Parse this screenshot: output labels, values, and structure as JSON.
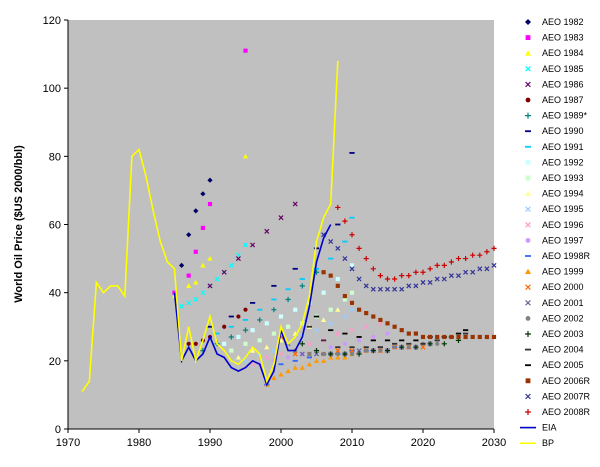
{
  "chart_data": {
    "type": "scatter",
    "ylabel": "World Oil Price ($US 2000/bbl)",
    "xlim": [
      1970,
      2030
    ],
    "ylim": [
      0,
      120
    ],
    "x_ticks": [
      "1970",
      "1980",
      "1990",
      "2000",
      "2010",
      "2020",
      "2030"
    ],
    "y_ticks": [
      "0",
      "20",
      "40",
      "60",
      "80",
      "100",
      "120"
    ],
    "plot_background": "#c0c0c0",
    "grid": false,
    "legend_position": "right",
    "series": [
      {
        "name": "AEO 1982",
        "marker": "diamond",
        "color": "#000066",
        "x": [
          1986,
          1987,
          1988,
          1989,
          1990
        ],
        "y": [
          48,
          57,
          64,
          69,
          73
        ]
      },
      {
        "name": "AEO 1983",
        "marker": "square",
        "color": "#ff00ff",
        "x": [
          1985,
          1987,
          1988,
          1989,
          1990,
          1995
        ],
        "y": [
          40,
          45,
          52,
          59,
          66,
          111
        ]
      },
      {
        "name": "AEO 1984",
        "marker": "triangle",
        "color": "#ffff00",
        "x": [
          1985,
          1987,
          1988,
          1989,
          1990,
          1995
        ],
        "y": [
          39,
          42,
          43,
          48,
          50,
          80
        ]
      },
      {
        "name": "AEO 1985",
        "marker": "x",
        "color": "#00ffff",
        "x": [
          1986,
          1987,
          1988,
          1989,
          1990,
          1991,
          1992,
          1993,
          1994,
          1995
        ],
        "y": [
          36,
          37,
          38,
          40,
          42,
          44,
          46,
          48,
          51,
          54
        ]
      },
      {
        "name": "AEO 1986",
        "marker": "x",
        "color": "#660066",
        "x": [
          1990,
          1992,
          1994,
          1996,
          1998,
          2000,
          2002
        ],
        "y": [
          42,
          46,
          50,
          54,
          58,
          62,
          66
        ]
      },
      {
        "name": "AEO 1987",
        "marker": "circle",
        "color": "#800000",
        "x": [
          1987,
          1988,
          1989,
          1990,
          1992,
          1994,
          1995
        ],
        "y": [
          25,
          25,
          26,
          27,
          30,
          33,
          35
        ]
      },
      {
        "name": "AEO 1989*",
        "marker": "plus",
        "color": "#008080",
        "x": [
          1989,
          1991,
          1993,
          1995,
          1997,
          1999,
          2001,
          2003,
          2005
        ],
        "y": [
          23,
          25,
          27,
          29,
          32,
          35,
          38,
          42,
          46
        ]
      },
      {
        "name": "AEO 1990",
        "marker": "dash",
        "color": "#000080",
        "x": [
          1990,
          1993,
          1996,
          1999,
          2002,
          2005,
          2008,
          2010
        ],
        "y": [
          30,
          33,
          37,
          42,
          47,
          53,
          60,
          81
        ]
      },
      {
        "name": "AEO 1991",
        "marker": "dash",
        "color": "#00ccff",
        "x": [
          1991,
          1993,
          1995,
          1997,
          1999,
          2001,
          2003,
          2005,
          2007,
          2009,
          2010
        ],
        "y": [
          28,
          30,
          32,
          35,
          38,
          41,
          44,
          47,
          50,
          55,
          62
        ]
      },
      {
        "name": "AEO 1992",
        "marker": "square",
        "color": "#ccffff",
        "x": [
          1992,
          1994,
          1996,
          1998,
          2000,
          2002,
          2004,
          2006,
          2008,
          2010
        ],
        "y": [
          25,
          27,
          29,
          31,
          33,
          35,
          37,
          40,
          44,
          48
        ]
      },
      {
        "name": "AEO 1993",
        "marker": "square",
        "color": "#ccffcc",
        "x": [
          1993,
          1995,
          1997,
          1999,
          2001,
          2003,
          2005,
          2007,
          2009,
          2010
        ],
        "y": [
          23,
          25,
          26,
          28,
          30,
          31,
          33,
          35,
          38,
          40
        ]
      },
      {
        "name": "AEO 1994",
        "marker": "triangle",
        "color": "#ffff99",
        "x": [
          1994,
          1996,
          1998,
          2000,
          2002,
          2004,
          2006,
          2008,
          2010
        ],
        "y": [
          21,
          23,
          24,
          26,
          28,
          30,
          32,
          35,
          37
        ]
      },
      {
        "name": "AEO 1995",
        "marker": "x",
        "color": "#99ccff",
        "x": [
          1995,
          1997,
          1999,
          2001,
          2003,
          2005,
          2007,
          2009,
          2010
        ],
        "y": [
          20,
          22,
          23,
          25,
          27,
          29,
          31,
          33,
          35
        ]
      },
      {
        "name": "AEO 1996",
        "marker": "x",
        "color": "#ff99cc",
        "x": [
          1996,
          1998,
          2000,
          2002,
          2004,
          2006,
          2008,
          2010,
          2012,
          2014
        ],
        "y": [
          19,
          21,
          22,
          23,
          25,
          26,
          28,
          29,
          30,
          31
        ]
      },
      {
        "name": "AEO 1997",
        "marker": "circle",
        "color": "#cc99ff",
        "x": [
          1997,
          1999,
          2001,
          2003,
          2005,
          2007,
          2009,
          2011,
          2013,
          2015
        ],
        "y": [
          19,
          20,
          21,
          22,
          23,
          24,
          25,
          26,
          27,
          28
        ]
      },
      {
        "name": "AEO 1998R",
        "marker": "dash",
        "color": "#3366ff",
        "x": [
          1998,
          2000,
          2002,
          2004,
          2006,
          2008,
          2010,
          2012,
          2014,
          2016
        ],
        "y": [
          13,
          19,
          20,
          21,
          22,
          22,
          23,
          23,
          24,
          24
        ]
      },
      {
        "name": "AEO 1999",
        "marker": "triangle",
        "color": "#ff9900",
        "x": [
          1998,
          1999,
          2000,
          2001,
          2002,
          2003,
          2004,
          2005,
          2006,
          2007,
          2008,
          2009,
          2010
        ],
        "y": [
          13,
          15,
          16,
          17,
          18,
          18,
          19,
          20,
          20,
          21,
          21,
          21,
          22
        ]
      },
      {
        "name": "AEO 2000",
        "marker": "x",
        "color": "#ff6600",
        "x": [
          2000,
          2002,
          2004,
          2006,
          2008,
          2010,
          2012,
          2014,
          2016,
          2018,
          2020
        ],
        "y": [
          27,
          22,
          22,
          22,
          23,
          23,
          23,
          23,
          24,
          24,
          24
        ]
      },
      {
        "name": "AEO 2001",
        "marker": "x",
        "color": "#666699",
        "x": [
          2001,
          2003,
          2005,
          2007,
          2009,
          2011,
          2013,
          2015,
          2017,
          2019,
          2021
        ],
        "y": [
          25,
          22,
          22,
          22,
          22,
          23,
          23,
          23,
          24,
          24,
          25
        ]
      },
      {
        "name": "AEO 2002",
        "marker": "circle",
        "color": "#808080",
        "x": [
          2002,
          2004,
          2006,
          2008,
          2010,
          2012,
          2014,
          2016,
          2018,
          2020,
          2022
        ],
        "y": [
          23,
          22,
          22,
          22,
          22,
          23,
          23,
          24,
          24,
          25,
          25
        ]
      },
      {
        "name": "AEO 2003",
        "marker": "plus",
        "color": "#003300",
        "x": [
          2003,
          2005,
          2007,
          2009,
          2011,
          2013,
          2015,
          2017,
          2019,
          2021,
          2023,
          2025
        ],
        "y": [
          25,
          23,
          22,
          22,
          22,
          23,
          23,
          24,
          24,
          25,
          25,
          26
        ]
      },
      {
        "name": "AEO 2004",
        "marker": "dash",
        "color": "#333333",
        "x": [
          2004,
          2006,
          2008,
          2010,
          2012,
          2014,
          2016,
          2018,
          2020,
          2022,
          2024,
          2026
        ],
        "y": [
          30,
          26,
          24,
          24,
          24,
          24,
          25,
          25,
          25,
          26,
          27,
          28
        ]
      },
      {
        "name": "AEO 2005",
        "marker": "dash",
        "color": "#000000",
        "x": [
          2005,
          2007,
          2009,
          2011,
          2013,
          2015,
          2017,
          2019,
          2021,
          2023,
          2025,
          2026
        ],
        "y": [
          33,
          29,
          28,
          27,
          26,
          26,
          26,
          26,
          27,
          27,
          28,
          29
        ]
      },
      {
        "name": "AEO 2006R",
        "marker": "square",
        "color": "#993300",
        "x": [
          2006,
          2007,
          2008,
          2009,
          2010,
          2011,
          2012,
          2013,
          2014,
          2015,
          2016,
          2017,
          2018,
          2019,
          2020,
          2021,
          2022,
          2023,
          2024,
          2025,
          2026,
          2027,
          2028,
          2029,
          2030
        ],
        "y": [
          46,
          45,
          42,
          39,
          37,
          35,
          34,
          33,
          32,
          31,
          30,
          29,
          28,
          28,
          27,
          27,
          27,
          27,
          27,
          27,
          27,
          27,
          27,
          27,
          27
        ]
      },
      {
        "name": "AEO 2007R",
        "marker": "x",
        "color": "#333399",
        "x": [
          2006,
          2007,
          2008,
          2009,
          2010,
          2011,
          2012,
          2013,
          2014,
          2015,
          2016,
          2017,
          2018,
          2019,
          2020,
          2021,
          2022,
          2023,
          2024,
          2025,
          2026,
          2027,
          2028,
          2029,
          2030
        ],
        "y": [
          57,
          55,
          53,
          50,
          47,
          44,
          42,
          41,
          41,
          41,
          41,
          41,
          42,
          42,
          43,
          43,
          44,
          44,
          45,
          45,
          46,
          46,
          47,
          47,
          48
        ]
      },
      {
        "name": "AEO 2008R",
        "marker": "plus",
        "color": "#cc0000",
        "x": [
          2008,
          2009,
          2010,
          2011,
          2012,
          2013,
          2014,
          2015,
          2016,
          2017,
          2018,
          2019,
          2020,
          2021,
          2022,
          2023,
          2024,
          2025,
          2026,
          2027,
          2028,
          2029,
          2030
        ],
        "y": [
          65,
          61,
          57,
          53,
          50,
          47,
          45,
          44,
          44,
          45,
          45,
          46,
          46,
          47,
          48,
          48,
          49,
          50,
          50,
          51,
          51,
          52,
          53
        ]
      },
      {
        "name": "EIA",
        "marker": "line",
        "color": "#0000cc",
        "x": [
          1985,
          1986,
          1987,
          1988,
          1989,
          1990,
          1991,
          1992,
          1993,
          1994,
          1995,
          1996,
          1997,
          1998,
          1999,
          2000,
          2001,
          2002,
          2003,
          2004,
          2005,
          2006,
          2007
        ],
        "y": [
          40,
          20,
          24,
          20,
          22,
          27,
          22,
          21,
          18,
          17,
          18,
          20,
          19,
          13,
          17,
          29,
          23,
          23,
          27,
          36,
          49,
          56,
          60
        ]
      },
      {
        "name": "BP",
        "marker": "line",
        "color": "#ffff00",
        "x": [
          1972,
          1973,
          1974,
          1975,
          1976,
          1977,
          1978,
          1979,
          1980,
          1981,
          1982,
          1983,
          1984,
          1985,
          1986,
          1987,
          1988,
          1989,
          1990,
          1991,
          1992,
          1993,
          1994,
          1995,
          1996,
          1997,
          1998,
          1999,
          2000,
          2001,
          2002,
          2003,
          2004,
          2005,
          2006,
          2007,
          2008
        ],
        "y": [
          11,
          14,
          43,
          40,
          42,
          42,
          39,
          80,
          82,
          74,
          64,
          55,
          49,
          47,
          20,
          30,
          20,
          26,
          33,
          25,
          23,
          20,
          19,
          21,
          24,
          22,
          14,
          19,
          30,
          25,
          27,
          31,
          39,
          55,
          62,
          66,
          108
        ]
      }
    ]
  }
}
